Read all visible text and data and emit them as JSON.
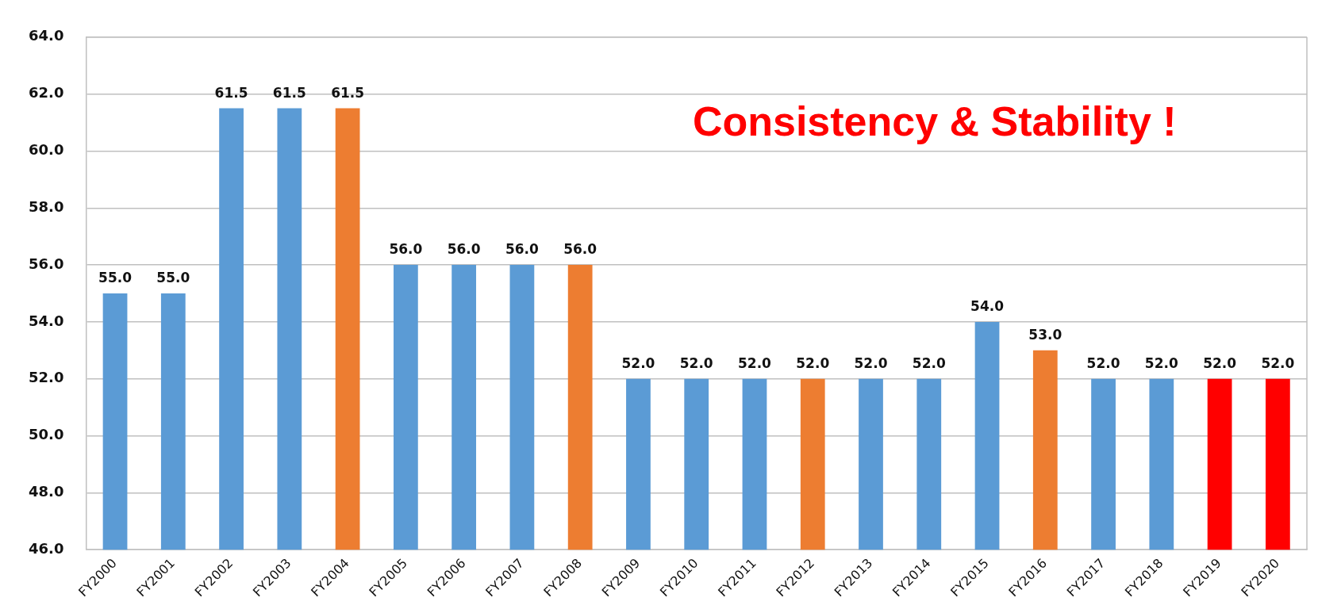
{
  "chart_data": {
    "type": "bar",
    "categories": [
      "FY2000",
      "FY2001",
      "FY2002",
      "FY2003",
      "FY2004",
      "FY2005",
      "FY2006",
      "FY2007",
      "FY2008",
      "FY2009",
      "FY2010",
      "FY2011",
      "FY2012",
      "FY2013",
      "FY2014",
      "FY2015",
      "FY2016",
      "FY2017",
      "FY2018",
      "FY2019",
      "FY2020"
    ],
    "values": [
      55,
      55,
      61.5,
      61.5,
      61.5,
      56,
      56,
      56,
      56,
      52,
      52,
      52,
      52,
      52,
      52,
      54,
      53,
      52,
      52,
      52,
      52
    ],
    "colors": [
      "#5b9bd5",
      "#5b9bd5",
      "#5b9bd5",
      "#5b9bd5",
      "#ed7d31",
      "#5b9bd5",
      "#5b9bd5",
      "#5b9bd5",
      "#ed7d31",
      "#5b9bd5",
      "#5b9bd5",
      "#5b9bd5",
      "#ed7d31",
      "#5b9bd5",
      "#5b9bd5",
      "#5b9bd5",
      "#ed7d31",
      "#5b9bd5",
      "#5b9bd5",
      "#ff0000",
      "#ff0000"
    ],
    "value_labels": [
      "55.0",
      "55.0",
      "61.5",
      "61.5",
      "61.5",
      "56.0",
      "56.0",
      "56.0",
      "56.0",
      "52.0",
      "52.0",
      "52.0",
      "52.0",
      "52.0",
      "52.0",
      "54.0",
      "53.0",
      "52.0",
      "52.0",
      "52.0",
      "52.0"
    ],
    "ylim": [
      46,
      64
    ],
    "yticks": [
      {
        "value": 46,
        "label": "46.0"
      },
      {
        "value": 48,
        "label": "48.0"
      },
      {
        "value": 50,
        "label": "50.0"
      },
      {
        "value": 52,
        "label": "52.0"
      },
      {
        "value": 54,
        "label": "54.0"
      },
      {
        "value": 56,
        "label": "56.0"
      },
      {
        "value": 58,
        "label": "58.0"
      },
      {
        "value": 60,
        "label": "60.0"
      },
      {
        "value": 62,
        "label": "62.0"
      },
      {
        "value": 64,
        "label": "64.0"
      }
    ],
    "grid": "y",
    "annotations": [
      "Consistency & Stability !"
    ]
  }
}
